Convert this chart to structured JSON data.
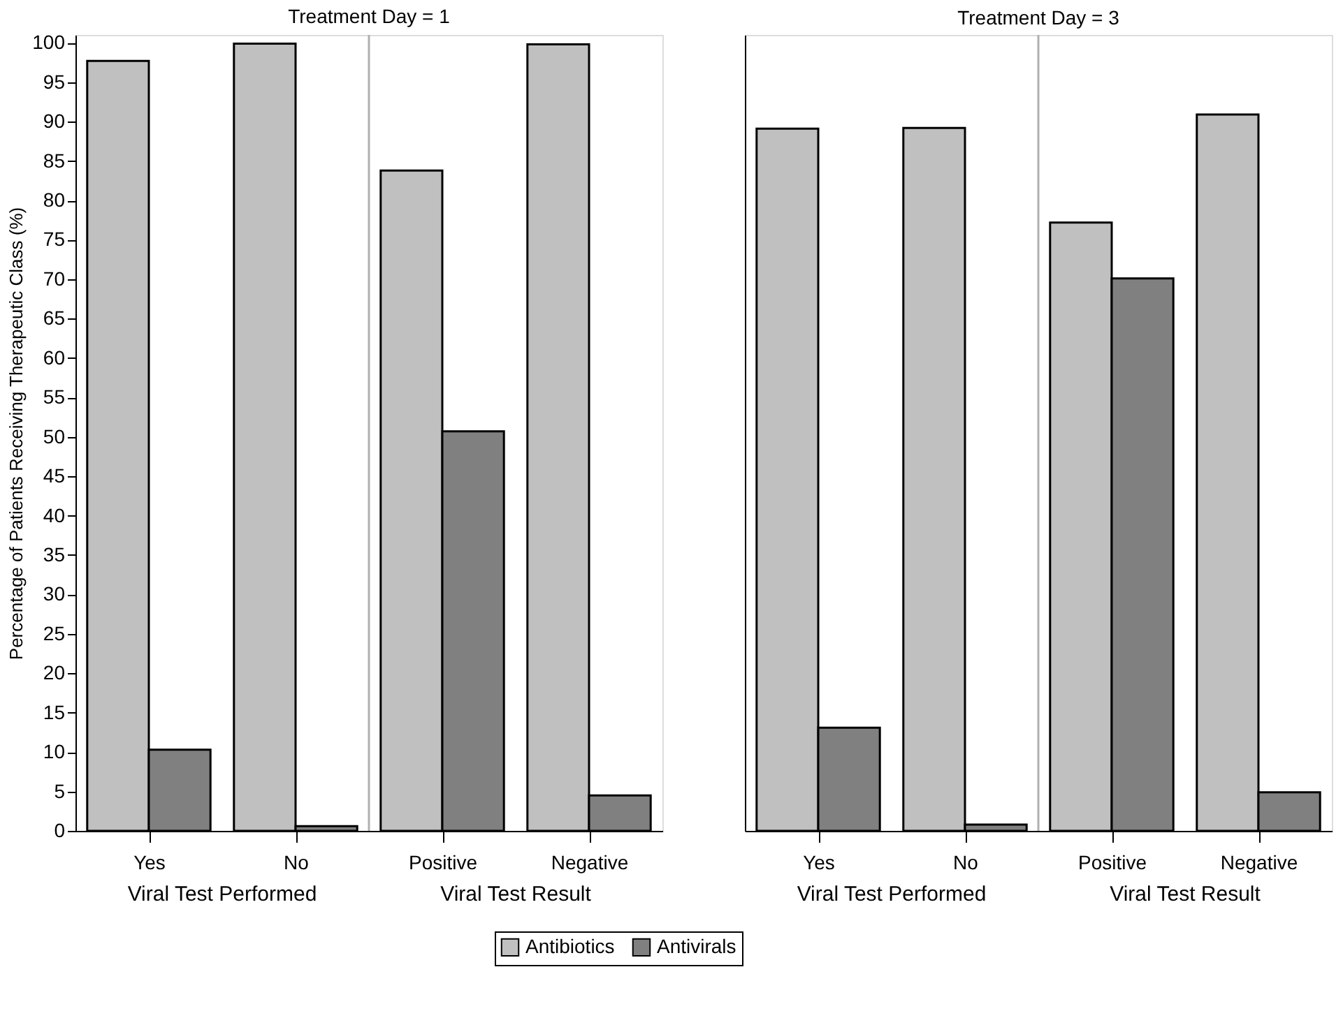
{
  "chart_data": [
    {
      "type": "bar",
      "title": "Treatment Day = 1",
      "ylabel": "Percentage of Patients Receiving Therapeutic Class (%)",
      "categories": [
        "Yes",
        "No",
        "Positive",
        "Negative"
      ],
      "annotations": [
        "Viral Test Performed",
        "Viral Test Result"
      ],
      "series": [
        {
          "name": "Antibiotics",
          "color": "#c0c0c0",
          "values": [
            97.7,
            99.9,
            83.8,
            99.8
          ]
        },
        {
          "name": "Antivirals",
          "color": "#808080",
          "values": [
            10.3,
            0.6,
            50.7,
            4.5
          ]
        }
      ],
      "ylim": [
        0,
        101
      ],
      "yticks": [
        0,
        5,
        10,
        15,
        20,
        25,
        30,
        35,
        40,
        45,
        50,
        55,
        60,
        65,
        70,
        75,
        80,
        85,
        90,
        95,
        100
      ],
      "grid": false,
      "legend": "bottom"
    },
    {
      "type": "bar",
      "title": "Treatment Day = 3",
      "categories": [
        "Yes",
        "No",
        "Positive",
        "Negative"
      ],
      "annotations": [
        "Viral Test Performed",
        "Viral Test Result"
      ],
      "series": [
        {
          "color": "#c0c0c0",
          "values": [
            89.1,
            89.2,
            77.2,
            90.9
          ]
        },
        {
          "color": "#808080",
          "values": [
            13.1,
            0.8,
            70.1,
            4.9
          ]
        }
      ],
      "ylim": [
        0,
        101
      ],
      "yticks": [
        0,
        5,
        10,
        15,
        20,
        25,
        30,
        35,
        40,
        45,
        50,
        55,
        60,
        65,
        70,
        75,
        80,
        85,
        90,
        95,
        100
      ],
      "grid": false,
      "tick_labels": "x"
    }
  ]
}
